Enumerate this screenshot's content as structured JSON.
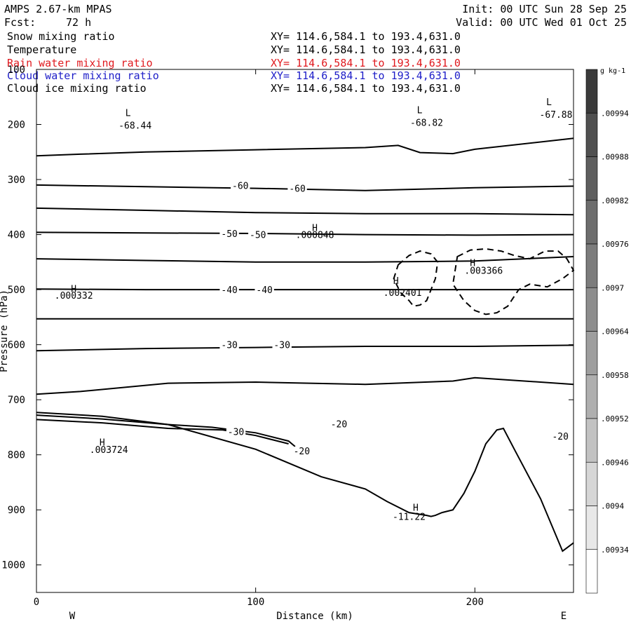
{
  "header": {
    "model": "AMPS 2.67-km MPAS",
    "forecast_label": "Fcst:",
    "forecast_value": "72 h",
    "init": "Init: 00 UTC Sun 28 Sep 25",
    "valid": "Valid: 00 UTC Wed 01 Oct 25"
  },
  "fields": [
    {
      "name": "Snow mixing ratio",
      "range": "XY= 114.6,584.1 to 193.4,631.0",
      "color": "#000000"
    },
    {
      "name": "Temperature",
      "range": "XY= 114.6,584.1 to 193.4,631.0",
      "color": "#000000"
    },
    {
      "name": "Rain water mixing ratio",
      "range": "XY= 114.6,584.1 to 193.4,631.0",
      "color": "#e0191e"
    },
    {
      "name": "Cloud water mixing ratio",
      "range": "XY= 114.6,584.1 to 193.4,631.0",
      "color": "#1e1ec8"
    },
    {
      "name": "Cloud ice mixing ratio",
      "range": "XY= 114.6,584.1 to 193.4,631.0",
      "color": "#000000"
    }
  ],
  "chart_data": {
    "type": "line",
    "ylabel": "Pressure (hPa)",
    "xlabel": "Distance (km)",
    "x_ticks": [
      0,
      100,
      200
    ],
    "y_ticks": [
      100,
      200,
      300,
      400,
      500,
      600,
      700,
      800,
      900,
      1000
    ],
    "xlim": [
      0,
      245
    ],
    "ylim": [
      100,
      1050
    ],
    "y_inverted": true,
    "left_end_label": "W",
    "right_end_label": "E",
    "colorbar": {
      "unit": "g kg-1",
      "labels": [
        ".00994",
        ".00988",
        ".00982",
        ".00976",
        ".0097",
        ".00964",
        ".00958",
        ".00952",
        ".00946",
        ".0094",
        ".00934"
      ]
    },
    "isotherms": [
      {
        "x": [
          0,
          20,
          50,
          100,
          150,
          165,
          175,
          190,
          200,
          245
        ],
        "p": [
          257,
          254,
          250,
          246,
          242,
          238,
          251,
          253,
          245,
          225
        ]
      },
      {
        "x": [
          0,
          50,
          100,
          150,
          200,
          245
        ],
        "p": [
          310,
          313,
          316,
          320,
          315,
          312
        ]
      },
      {
        "x": [
          0,
          50,
          100,
          150,
          200,
          245
        ],
        "p": [
          352,
          356,
          360,
          362,
          362,
          364
        ]
      },
      {
        "x": [
          0,
          50,
          100,
          150,
          200,
          245
        ],
        "p": [
          396,
          397,
          398,
          400,
          401,
          400
        ]
      },
      {
        "x": [
          0,
          50,
          100,
          150,
          200,
          245
        ],
        "p": [
          444,
          447,
          450,
          450,
          448,
          440
        ]
      },
      {
        "x": [
          0,
          50,
          100,
          150,
          200,
          245
        ],
        "p": [
          499,
          500,
          500,
          500,
          500,
          500
        ]
      },
      {
        "x": [
          0,
          50,
          100,
          150,
          200,
          245
        ],
        "p": [
          553,
          553,
          553,
          553,
          553,
          553
        ]
      },
      {
        "x": [
          0,
          50,
          100,
          150,
          200,
          245
        ],
        "p": [
          611,
          607,
          605,
          603,
          603,
          601
        ]
      },
      {
        "x": [
          0,
          20,
          60,
          100,
          150,
          190,
          200,
          245
        ],
        "p": [
          690,
          685,
          670,
          668,
          672,
          666,
          660,
          672
        ]
      },
      {
        "x": [
          0,
          30,
          60,
          80,
          100,
          115,
          118
        ],
        "p": [
          728,
          735,
          745,
          750,
          760,
          775,
          785
        ]
      },
      {
        "x": [
          0,
          30,
          60,
          85,
          100,
          115
        ],
        "p": [
          736,
          742,
          752,
          755,
          765,
          780
        ]
      },
      {
        "x": [
          0,
          30,
          60,
          100,
          130,
          150,
          160,
          170,
          178,
          180,
          182,
          185,
          190,
          195,
          200,
          205,
          210,
          213,
          218,
          230,
          240,
          245
        ],
        "p": [
          723,
          730,
          745,
          790,
          840,
          862,
          885,
          905,
          910,
          912,
          910,
          905,
          900,
          870,
          830,
          780,
          755,
          752,
          790,
          880,
          975,
          960
        ]
      }
    ],
    "isotherm_labels": [
      {
        "text": "-60",
        "x": 93,
        "p": 311
      },
      {
        "text": "-60",
        "x": 119,
        "p": 316
      },
      {
        "text": "-50",
        "x": 88,
        "p": 398
      },
      {
        "text": "-50",
        "x": 101,
        "p": 400
      },
      {
        "text": "-40",
        "x": 88,
        "p": 500
      },
      {
        "text": "-40",
        "x": 104,
        "p": 500
      },
      {
        "text": "-30",
        "x": 88,
        "p": 600
      },
      {
        "text": "-30",
        "x": 112,
        "p": 600
      },
      {
        "text": "-30",
        "x": 91,
        "p": 758
      },
      {
        "text": "-20",
        "x": 121,
        "p": 793
      },
      {
        "text": "-20",
        "x": 138,
        "p": 744
      },
      {
        "text": "-20",
        "x": 239,
        "p": 766
      }
    ],
    "cloud_contours": [
      {
        "x": [
          165,
          170,
          175,
          180,
          183,
          182,
          180,
          178,
          175,
          172,
          170,
          166,
          163,
          165
        ],
        "p": [
          455,
          438,
          430,
          435,
          450,
          480,
          500,
          520,
          528,
          530,
          520,
          505,
          480,
          455
        ]
      },
      {
        "x": [
          192,
          198,
          205,
          212,
          218,
          225,
          232,
          238,
          242,
          245,
          240,
          233,
          225,
          220,
          215,
          210,
          205,
          200,
          195,
          190,
          192
        ],
        "p": [
          440,
          428,
          426,
          430,
          438,
          444,
          430,
          430,
          444,
          465,
          480,
          495,
          490,
          500,
          530,
          542,
          545,
          538,
          520,
          490,
          440
        ]
      }
    ],
    "mixing_labels": [
      {
        "text": ".000332",
        "x": 17,
        "p": 510
      },
      {
        "text": ".000848",
        "x": 127,
        "p": 400
      },
      {
        "text": ".002401",
        "x": 167,
        "p": 505
      },
      {
        "text": ".003366",
        "x": 204,
        "p": 465
      },
      {
        "text": ".003724",
        "x": 33,
        "p": 790
      }
    ],
    "highs": [
      {
        "x": 17,
        "p": 498
      },
      {
        "x": 127,
        "p": 387
      },
      {
        "x": 164,
        "p": 483
      },
      {
        "x": 199,
        "p": 451
      },
      {
        "x": 30,
        "p": 777
      },
      {
        "x": 173,
        "p": 895
      }
    ],
    "lows": [
      {
        "label": "-68.44",
        "x": 45,
        "p": 200
      },
      {
        "label": "-68.82",
        "x": 178,
        "p": 195
      },
      {
        "label": "-67.88",
        "x": 237,
        "p": 180
      }
    ],
    "min_label": "-11.22",
    "min_x": 170,
    "min_p": 912,
    "high_marker": "H",
    "low_marker": "L"
  }
}
